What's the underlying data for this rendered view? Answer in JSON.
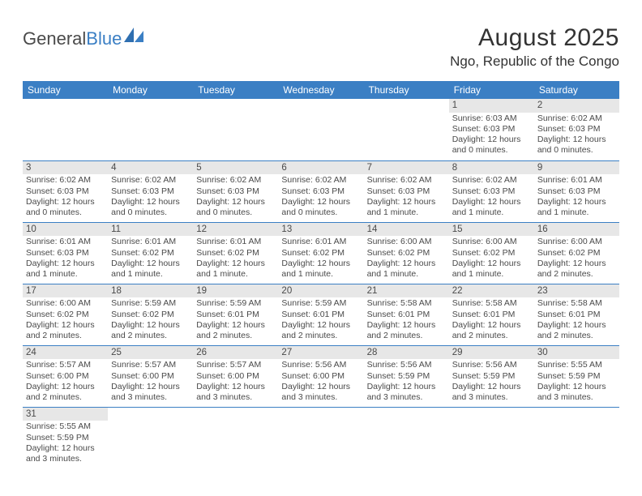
{
  "logo": {
    "text1": "General",
    "text2": "Blue"
  },
  "title": "August 2025",
  "location": "Ngo, Republic of the Congo",
  "colors": {
    "header_bg": "#3b7fc4",
    "header_text": "#ffffff",
    "daynum_bg": "#e7e7e7",
    "border": "#3b7fc4",
    "body_text": "#4a4a4a"
  },
  "weekdays": [
    "Sunday",
    "Monday",
    "Tuesday",
    "Wednesday",
    "Thursday",
    "Friday",
    "Saturday"
  ],
  "weeks": [
    [
      null,
      null,
      null,
      null,
      null,
      {
        "n": "1",
        "sr": "6:03 AM",
        "ss": "6:03 PM",
        "dl": "12 hours and 0 minutes."
      },
      {
        "n": "2",
        "sr": "6:02 AM",
        "ss": "6:03 PM",
        "dl": "12 hours and 0 minutes."
      }
    ],
    [
      {
        "n": "3",
        "sr": "6:02 AM",
        "ss": "6:03 PM",
        "dl": "12 hours and 0 minutes."
      },
      {
        "n": "4",
        "sr": "6:02 AM",
        "ss": "6:03 PM",
        "dl": "12 hours and 0 minutes."
      },
      {
        "n": "5",
        "sr": "6:02 AM",
        "ss": "6:03 PM",
        "dl": "12 hours and 0 minutes."
      },
      {
        "n": "6",
        "sr": "6:02 AM",
        "ss": "6:03 PM",
        "dl": "12 hours and 0 minutes."
      },
      {
        "n": "7",
        "sr": "6:02 AM",
        "ss": "6:03 PM",
        "dl": "12 hours and 1 minute."
      },
      {
        "n": "8",
        "sr": "6:02 AM",
        "ss": "6:03 PM",
        "dl": "12 hours and 1 minute."
      },
      {
        "n": "9",
        "sr": "6:01 AM",
        "ss": "6:03 PM",
        "dl": "12 hours and 1 minute."
      }
    ],
    [
      {
        "n": "10",
        "sr": "6:01 AM",
        "ss": "6:03 PM",
        "dl": "12 hours and 1 minute."
      },
      {
        "n": "11",
        "sr": "6:01 AM",
        "ss": "6:02 PM",
        "dl": "12 hours and 1 minute."
      },
      {
        "n": "12",
        "sr": "6:01 AM",
        "ss": "6:02 PM",
        "dl": "12 hours and 1 minute."
      },
      {
        "n": "13",
        "sr": "6:01 AM",
        "ss": "6:02 PM",
        "dl": "12 hours and 1 minute."
      },
      {
        "n": "14",
        "sr": "6:00 AM",
        "ss": "6:02 PM",
        "dl": "12 hours and 1 minute."
      },
      {
        "n": "15",
        "sr": "6:00 AM",
        "ss": "6:02 PM",
        "dl": "12 hours and 1 minute."
      },
      {
        "n": "16",
        "sr": "6:00 AM",
        "ss": "6:02 PM",
        "dl": "12 hours and 2 minutes."
      }
    ],
    [
      {
        "n": "17",
        "sr": "6:00 AM",
        "ss": "6:02 PM",
        "dl": "12 hours and 2 minutes."
      },
      {
        "n": "18",
        "sr": "5:59 AM",
        "ss": "6:02 PM",
        "dl": "12 hours and 2 minutes."
      },
      {
        "n": "19",
        "sr": "5:59 AM",
        "ss": "6:01 PM",
        "dl": "12 hours and 2 minutes."
      },
      {
        "n": "20",
        "sr": "5:59 AM",
        "ss": "6:01 PM",
        "dl": "12 hours and 2 minutes."
      },
      {
        "n": "21",
        "sr": "5:58 AM",
        "ss": "6:01 PM",
        "dl": "12 hours and 2 minutes."
      },
      {
        "n": "22",
        "sr": "5:58 AM",
        "ss": "6:01 PM",
        "dl": "12 hours and 2 minutes."
      },
      {
        "n": "23",
        "sr": "5:58 AM",
        "ss": "6:01 PM",
        "dl": "12 hours and 2 minutes."
      }
    ],
    [
      {
        "n": "24",
        "sr": "5:57 AM",
        "ss": "6:00 PM",
        "dl": "12 hours and 2 minutes."
      },
      {
        "n": "25",
        "sr": "5:57 AM",
        "ss": "6:00 PM",
        "dl": "12 hours and 3 minutes."
      },
      {
        "n": "26",
        "sr": "5:57 AM",
        "ss": "6:00 PM",
        "dl": "12 hours and 3 minutes."
      },
      {
        "n": "27",
        "sr": "5:56 AM",
        "ss": "6:00 PM",
        "dl": "12 hours and 3 minutes."
      },
      {
        "n": "28",
        "sr": "5:56 AM",
        "ss": "5:59 PM",
        "dl": "12 hours and 3 minutes."
      },
      {
        "n": "29",
        "sr": "5:56 AM",
        "ss": "5:59 PM",
        "dl": "12 hours and 3 minutes."
      },
      {
        "n": "30",
        "sr": "5:55 AM",
        "ss": "5:59 PM",
        "dl": "12 hours and 3 minutes."
      }
    ],
    [
      {
        "n": "31",
        "sr": "5:55 AM",
        "ss": "5:59 PM",
        "dl": "12 hours and 3 minutes."
      },
      null,
      null,
      null,
      null,
      null,
      null
    ]
  ],
  "labels": {
    "sunrise": "Sunrise:",
    "sunset": "Sunset:",
    "daylight": "Daylight:"
  }
}
